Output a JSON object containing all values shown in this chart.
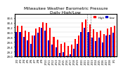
{
  "title": "Milwaukee Weather Barometric Pressure",
  "subtitle": "Daily High/Low",
  "bar_width": 0.4,
  "background_color": "#ffffff",
  "high_color": "#ff0000",
  "low_color": "#0000cc",
  "ymin": 29.0,
  "ylim": [
    29.0,
    30.75
  ],
  "yticks": [
    29.0,
    29.2,
    29.4,
    29.6,
    29.8,
    30.0,
    30.2,
    30.4,
    30.6
  ],
  "dates": [
    "2/2",
    "2/3",
    "2/4",
    "2/5",
    "2/6",
    "2/7",
    "2/8",
    "2/9",
    "2/10",
    "2/11",
    "2/12",
    "2/13",
    "2/14",
    "2/15",
    "2/16",
    "2/17",
    "2/18",
    "2/19",
    "2/20",
    "2/21",
    "2/22",
    "2/23",
    "2/24",
    "2/25",
    "2/26",
    "2/27",
    "2/28",
    "3/1"
  ],
  "highs": [
    30.28,
    30.26,
    30.08,
    30.02,
    29.88,
    30.16,
    30.2,
    30.42,
    30.38,
    30.18,
    29.82,
    29.7,
    29.52,
    29.58,
    29.44,
    29.48,
    29.72,
    29.88,
    30.42,
    30.52,
    30.32,
    30.12,
    30.02,
    30.08,
    29.92,
    30.16,
    30.2,
    30.26
  ],
  "lows": [
    30.02,
    30.0,
    29.8,
    29.68,
    29.52,
    29.86,
    29.98,
    30.18,
    30.08,
    29.68,
    29.48,
    29.38,
    29.14,
    29.18,
    29.02,
    29.08,
    29.32,
    29.52,
    30.02,
    30.18,
    30.02,
    29.78,
    29.64,
    29.78,
    29.58,
    29.88,
    29.9,
    29.98
  ],
  "dashed_vlines": [
    19.5,
    20.5
  ],
  "legend_high": "High",
  "legend_low": "Low",
  "title_fontsize": 4.2,
  "tick_fontsize": 2.8,
  "legend_fontsize": 2.8
}
